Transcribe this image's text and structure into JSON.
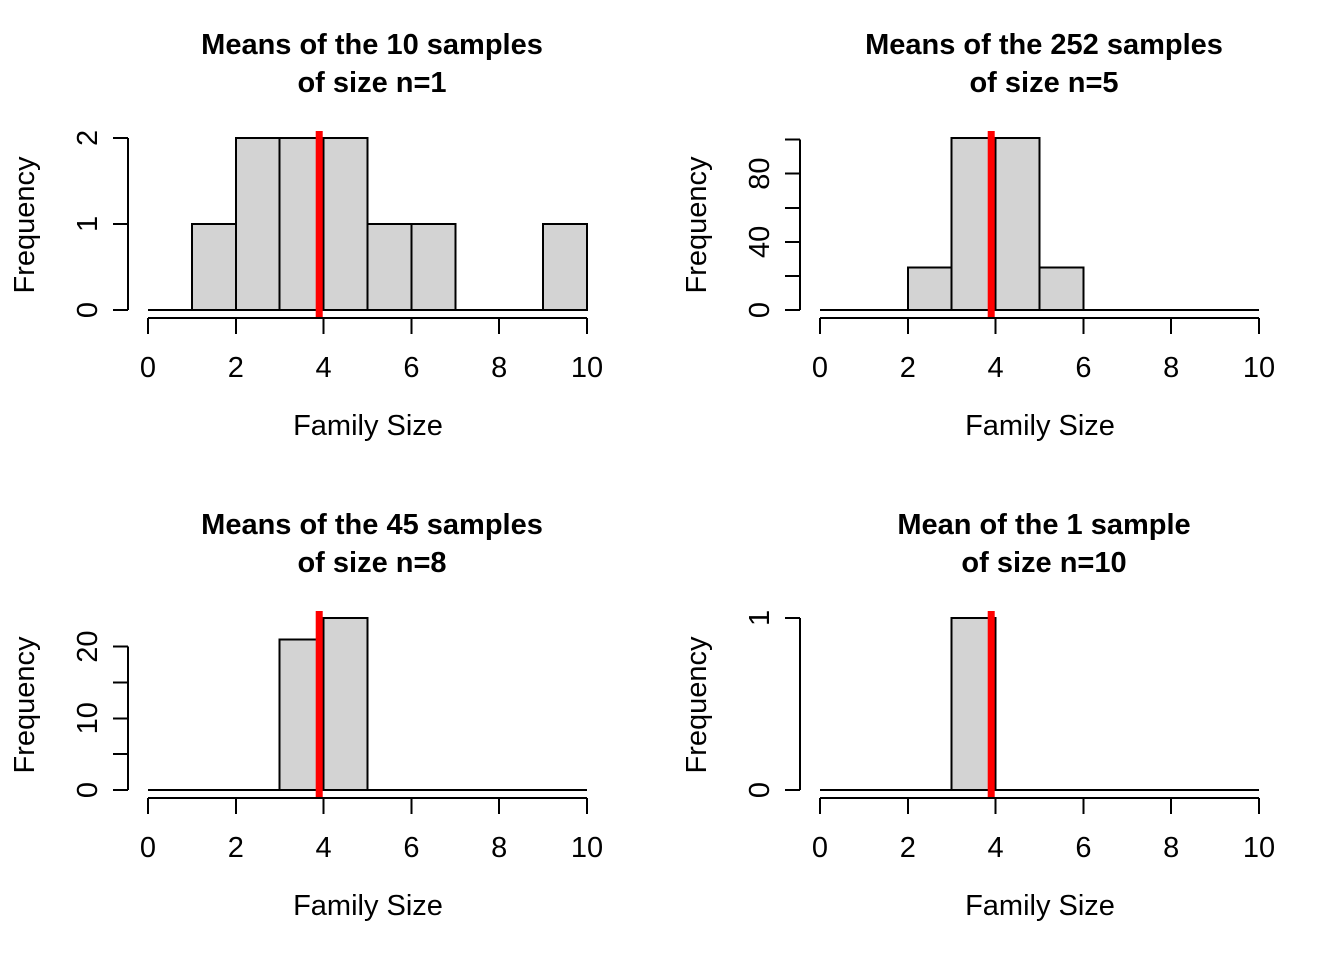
{
  "figure": {
    "background": "#ffffff",
    "bar_fill": "#d3d3d3",
    "bar_stroke": "#000000",
    "axis_color": "#000000",
    "mean_line_color": "#ff0000",
    "population_mean": 3.9
  },
  "chart_data": [
    {
      "type": "bar",
      "title_line1": "Means of the 10 samples",
      "title_line2": "of size n=1",
      "xlabel": "Family Size",
      "ylabel": "Frequency",
      "xlim": [
        0,
        10
      ],
      "bin_edges": [
        0,
        1,
        2,
        3,
        4,
        5,
        6,
        7,
        8,
        9,
        10
      ],
      "counts": [
        0,
        1,
        2,
        2,
        2,
        1,
        1,
        0,
        0,
        1
      ],
      "x_ticks": [
        0,
        2,
        4,
        6,
        8,
        10
      ],
      "y_ticks": [
        {
          "value": 0,
          "label": "0"
        },
        {
          "value": 1,
          "label": "1"
        },
        {
          "value": 2,
          "label": "2"
        }
      ],
      "mean_line_x": 3.9
    },
    {
      "type": "bar",
      "title_line1": "Means of the 252 samples",
      "title_line2": "of size n=5",
      "xlabel": "Family Size",
      "ylabel": "Frequency",
      "xlim": [
        0,
        10
      ],
      "bin_edges": [
        0,
        1,
        2,
        3,
        4,
        5,
        6,
        7,
        8,
        9,
        10
      ],
      "counts": [
        0,
        0,
        25,
        101,
        101,
        25,
        0,
        0,
        0,
        0
      ],
      "x_ticks": [
        0,
        2,
        4,
        6,
        8,
        10
      ],
      "y_ticks": [
        {
          "value": 0,
          "label": "0"
        },
        {
          "value": 20,
          "label": ""
        },
        {
          "value": 40,
          "label": "40"
        },
        {
          "value": 60,
          "label": ""
        },
        {
          "value": 80,
          "label": "80"
        },
        {
          "value": 100,
          "label": ""
        }
      ],
      "mean_line_x": 3.9
    },
    {
      "type": "bar",
      "title_line1": "Means of the 45 samples",
      "title_line2": "of size n=8",
      "xlabel": "Family Size",
      "ylabel": "Frequency",
      "xlim": [
        0,
        10
      ],
      "bin_edges": [
        0,
        1,
        2,
        3,
        4,
        5,
        6,
        7,
        8,
        9,
        10
      ],
      "counts": [
        0,
        0,
        0,
        21,
        24,
        0,
        0,
        0,
        0,
        0
      ],
      "x_ticks": [
        0,
        2,
        4,
        6,
        8,
        10
      ],
      "y_ticks": [
        {
          "value": 0,
          "label": "0"
        },
        {
          "value": 5,
          "label": ""
        },
        {
          "value": 10,
          "label": "10"
        },
        {
          "value": 15,
          "label": ""
        },
        {
          "value": 20,
          "label": "20"
        }
      ],
      "mean_line_x": 3.9
    },
    {
      "type": "bar",
      "title_line1": "Mean of the 1 sample",
      "title_line2": "of size n=10",
      "xlabel": "Family Size",
      "ylabel": "Frequency",
      "xlim": [
        0,
        10
      ],
      "bin_edges": [
        0,
        1,
        2,
        3,
        4,
        5,
        6,
        7,
        8,
        9,
        10
      ],
      "counts": [
        0,
        0,
        0,
        1,
        0,
        0,
        0,
        0,
        0,
        0
      ],
      "x_ticks": [
        0,
        2,
        4,
        6,
        8,
        10
      ],
      "y_ticks": [
        {
          "value": 0,
          "label": "0"
        },
        {
          "value": 1,
          "label": "1"
        }
      ],
      "mean_line_x": 3.9
    }
  ]
}
